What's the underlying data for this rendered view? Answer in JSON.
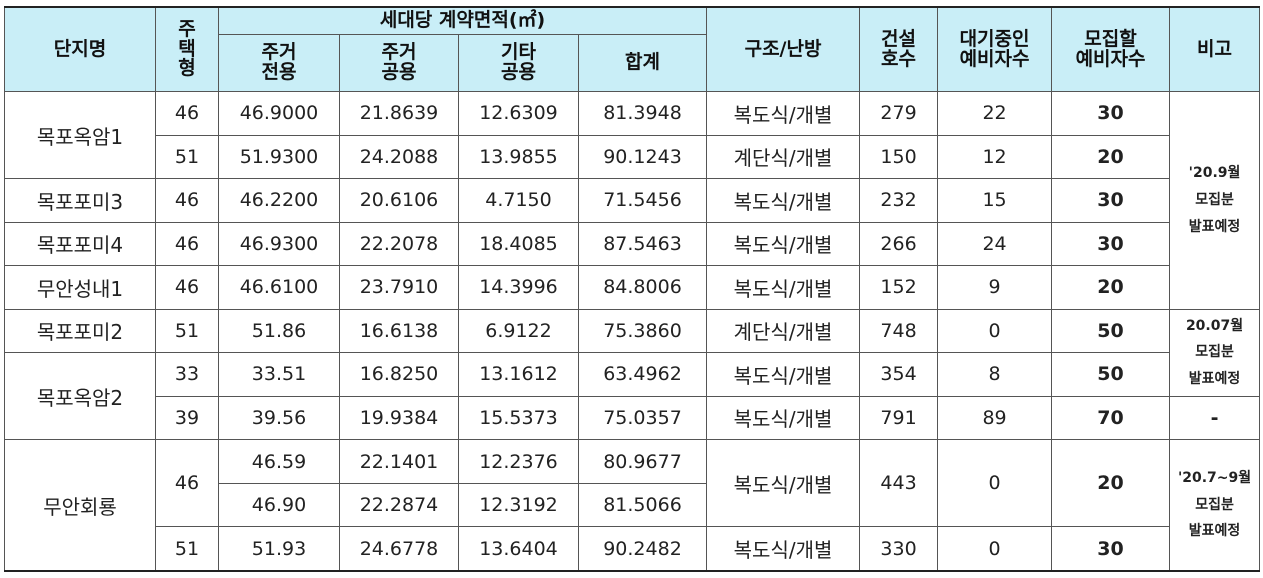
{
  "header": {
    "complex": "단지명",
    "type": [
      "주",
      "택",
      "형"
    ],
    "area_group": "세대당 계약면적(㎡)",
    "area_cols": [
      [
        "주거",
        "전용"
      ],
      [
        "주거",
        "공용"
      ],
      [
        "기타",
        "공용"
      ],
      [
        "합계"
      ]
    ],
    "structure": "구조/난방",
    "units": [
      "건설",
      "호수"
    ],
    "waiting": [
      "대기중인",
      "예비자수"
    ],
    "recruit": [
      "모집할",
      "예비자수"
    ],
    "note": "비고"
  },
  "rows": [
    {
      "complex": "목포옥암1",
      "type": "46",
      "excl": "46.9000",
      "pub": "21.8639",
      "other": "12.6309",
      "total": "81.3948",
      "structure": "복도식/개별",
      "units": "279",
      "waiting": "22",
      "recruit": "30"
    },
    {
      "type": "51",
      "excl": "51.9300",
      "pub": "24.2088",
      "other": "13.9855",
      "total": "90.1243",
      "structure": "계단식/개별",
      "units": "150",
      "waiting": "12",
      "recruit": "20"
    },
    {
      "complex": "목포포미3",
      "type": "46",
      "excl": "46.2200",
      "pub": "20.6106",
      "other": "4.7150",
      "total": "71.5456",
      "structure": "복도식/개별",
      "units": "232",
      "waiting": "15",
      "recruit": "30"
    },
    {
      "complex": "목포포미4",
      "type": "46",
      "excl": "46.9300",
      "pub": "22.2078",
      "other": "18.4085",
      "total": "87.5463",
      "structure": "복도식/개별",
      "units": "266",
      "waiting": "24",
      "recruit": "30"
    },
    {
      "complex": "무안성내1",
      "type": "46",
      "excl": "46.6100",
      "pub": "23.7910",
      "other": "14.3996",
      "total": "84.8006",
      "structure": "복도식/개별",
      "units": "152",
      "waiting": "9",
      "recruit": "20"
    },
    {
      "complex": "목포포미2",
      "type": "51",
      "excl": "51.86",
      "pub": "16.6138",
      "other": "6.9122",
      "total": "75.3860",
      "structure": "계단식/개별",
      "units": "748",
      "waiting": "0",
      "recruit": "50"
    },
    {
      "complex": "목포옥암2",
      "type": "33",
      "excl": "33.51",
      "pub": "16.8250",
      "other": "13.1612",
      "total": "63.4962",
      "structure": "복도식/개별",
      "units": "354",
      "waiting": "8",
      "recruit": "50"
    },
    {
      "type": "39",
      "excl": "39.56",
      "pub": "19.9384",
      "other": "15.5373",
      "total": "75.0357",
      "structure": "복도식/개별",
      "units": "791",
      "waiting": "89",
      "recruit": "70"
    },
    {
      "complex": "무안회룡",
      "type": "46",
      "excl": "46.59",
      "pub": "22.1401",
      "other": "12.2376",
      "total": "80.9677",
      "structure": "복도식/개별",
      "units": "443",
      "waiting": "0",
      "recruit": "20"
    },
    {
      "excl": "46.90",
      "pub": "22.2874",
      "other": "12.3192",
      "total": "81.5066"
    },
    {
      "type": "51",
      "excl": "51.93",
      "pub": "24.6778",
      "other": "13.6404",
      "total": "90.2482",
      "structure": "복도식/개별",
      "units": "330",
      "waiting": "0",
      "recruit": "30"
    }
  ],
  "notes": {
    "n1": [
      "'20.9월",
      "모집분",
      "발표예정"
    ],
    "n2": [
      "20.07월",
      "모집분",
      "발표예정"
    ],
    "n3": "-",
    "n4": [
      "'20.7~9월",
      "모집분",
      "발표예정"
    ]
  }
}
